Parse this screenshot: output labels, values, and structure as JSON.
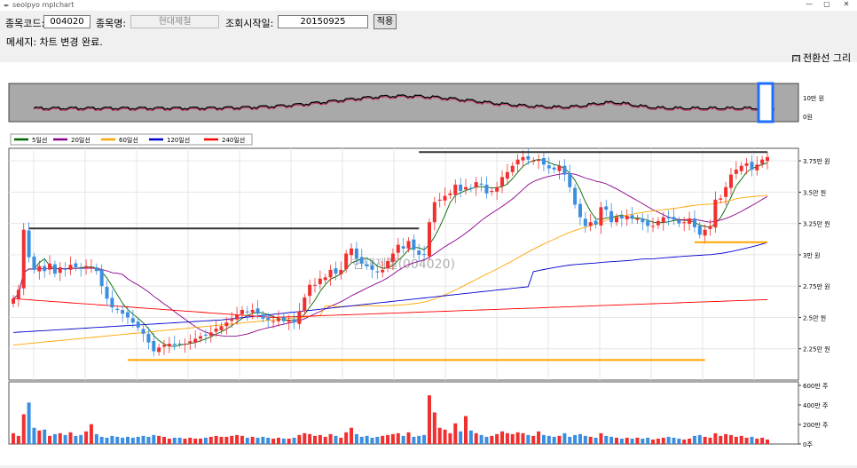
{
  "window": {
    "title": "seolpyo mplchart",
    "app_icon": "feather-icon"
  },
  "form": {
    "code_label": "종목코드:",
    "code_value": "004020",
    "name_label": "종목명:",
    "name_value": "현대제철",
    "date_label": "조회시작일:",
    "date_value": "20150925",
    "apply_label": "적용"
  },
  "message": "메세지: 차트 변경 완료.",
  "checkbox": {
    "label": "전환선 그리기",
    "checked": true,
    "mark": "☑"
  },
  "overview": {
    "yticks": [
      "10만 원",
      "0원"
    ],
    "colors": {
      "bg": "#a9a9a9",
      "line": "#000000",
      "ma": "#c0306a",
      "window": "#1e6fff"
    }
  },
  "legend": [
    {
      "label": "5일선",
      "color": "#006400"
    },
    {
      "label": "20일선",
      "color": "#8b008b"
    },
    {
      "label": "60일선",
      "color": "#ffa500"
    },
    {
      "label": "120일선",
      "color": "#0000cd"
    },
    {
      "label": "240일선",
      "color": "#ff0000"
    }
  ],
  "watermark": "현대제철(004020)",
  "colors": {
    "up": "#f03030",
    "down": "#3b8fe0",
    "hline": "#333333",
    "support": "#ffa500",
    "grid": "#e6e6e6"
  },
  "chart_data": [
    {
      "type": "candlestick",
      "title": "",
      "ylabel_ticks": [
        "3.75만 원",
        "3.5만 원",
        "3.25만 원",
        "3만 원",
        "2.75만 원",
        "2.5만 원",
        "2.25만 원"
      ],
      "ytick_values": [
        37500,
        35000,
        32500,
        30000,
        27500,
        25000,
        22500
      ],
      "ylim": [
        20000,
        38500
      ],
      "n_candles": 146,
      "close": [
        26500,
        27200,
        32000,
        29800,
        28800,
        29100,
        28700,
        29300,
        28500,
        29000,
        28800,
        29200,
        29000,
        28900,
        29100,
        29000,
        28700,
        27500,
        26500,
        25800,
        25600,
        25300,
        25000,
        24600,
        24200,
        23700,
        23000,
        22300,
        22600,
        22800,
        22900,
        22800,
        22900,
        22900,
        23100,
        23300,
        23500,
        23600,
        23800,
        24100,
        24300,
        24600,
        24900,
        25200,
        25600,
        25400,
        25600,
        25300,
        24900,
        24800,
        24700,
        24900,
        24700,
        24800,
        24600,
        25500,
        26600,
        27600,
        27600,
        28100,
        28200,
        28800,
        28500,
        28800,
        30100,
        30500,
        29700,
        29300,
        29100,
        28800,
        28600,
        28800,
        29500,
        30100,
        30800,
        30500,
        31100,
        30400,
        30000,
        30000,
        32600,
        34200,
        34400,
        34700,
        34900,
        35600,
        35100,
        35400,
        35300,
        35800,
        35600,
        34900,
        35100,
        35400,
        36200,
        36600,
        37100,
        37600,
        37800,
        37600,
        37500,
        37600,
        37200,
        36900,
        36800,
        37100,
        36400,
        35400,
        34000,
        33000,
        32300,
        32600,
        32400,
        33800,
        33600,
        32600,
        33000,
        32900,
        33100,
        32900,
        32900,
        32600,
        32300,
        32300,
        32700,
        33000,
        32900,
        32800,
        32500,
        32600,
        32900,
        32200,
        31600,
        32000,
        32300,
        34400,
        34500,
        35400,
        36400,
        36800,
        37100,
        37300,
        36800,
        37200,
        37600,
        37800
      ],
      "volume": [
        1.2,
        0.9,
        3.3,
        4.6,
        1.8,
        1.5,
        1.6,
        0.9,
        1.1,
        1.2,
        1.0,
        1.3,
        0.9,
        1.0,
        1.4,
        2.2,
        1.1,
        0.8,
        0.7,
        0.9,
        0.8,
        0.7,
        0.8,
        0.7,
        0.8,
        0.9,
        0.8,
        1.0,
        0.9,
        0.8,
        0.6,
        0.7,
        0.7,
        0.6,
        0.7,
        0.6,
        0.6,
        0.7,
        0.8,
        0.9,
        0.8,
        0.8,
        0.9,
        1.0,
        0.9,
        0.7,
        0.8,
        0.7,
        0.8,
        0.7,
        0.6,
        0.7,
        0.6,
        0.6,
        0.7,
        1.0,
        1.2,
        1.1,
        0.9,
        1.0,
        0.8,
        1.1,
        0.9,
        0.7,
        1.3,
        1.8,
        1.1,
        0.8,
        0.9,
        0.7,
        0.8,
        0.9,
        1.0,
        1.1,
        1.2,
        0.9,
        1.3,
        0.8,
        0.9,
        1.0,
        5.4,
        3.5,
        1.8,
        1.6,
        1.2,
        2.3,
        1.4,
        3.1,
        1.5,
        1.2,
        1.0,
        0.8,
        0.9,
        1.1,
        1.4,
        1.2,
        1.1,
        1.3,
        1.2,
        1.0,
        0.9,
        1.4,
        1.0,
        0.9,
        0.8,
        0.9,
        1.2,
        0.8,
        1.0,
        1.1,
        0.9,
        0.8,
        0.7,
        1.2,
        0.9,
        0.8,
        0.7,
        0.6,
        0.7,
        0.6,
        0.7,
        0.6,
        0.7,
        0.5,
        0.6,
        0.7,
        0.8,
        0.7,
        0.6,
        0.5,
        0.6,
        0.9,
        1.0,
        0.8,
        0.7,
        1.2,
        0.9,
        1.1,
        1.0,
        0.8,
        0.9,
        0.7,
        0.8,
        0.6,
        0.7,
        0.5
      ],
      "volume_ticks": [
        "600만 주",
        "400만 주",
        "200만 주",
        "0주"
      ],
      "volume_tick_values": [
        600,
        400,
        200,
        0
      ],
      "resistance_lines": [
        {
          "from": 3,
          "to": 78,
          "value": 32100
        },
        {
          "from": 78,
          "to": 145,
          "value": 38200
        }
      ],
      "support_lines": [
        {
          "from": 22,
          "to": 133,
          "value": 21600
        },
        {
          "from": 131,
          "to": 145,
          "value": 31000
        }
      ]
    }
  ]
}
